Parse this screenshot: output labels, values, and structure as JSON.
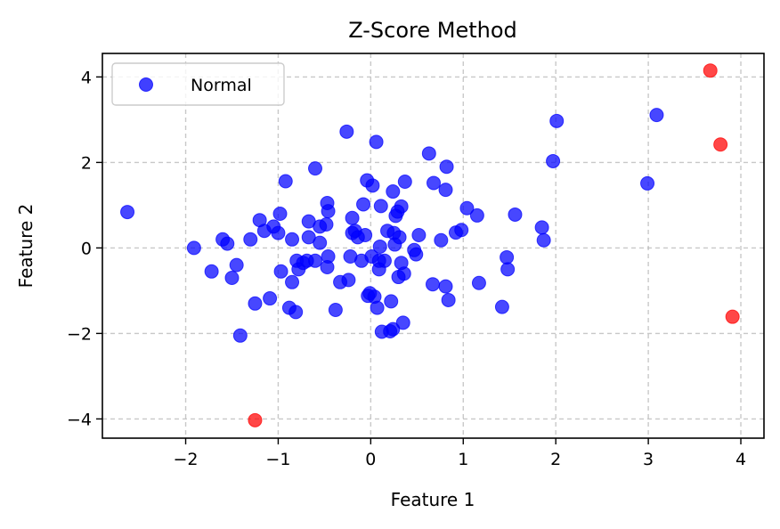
{
  "chart_data": {
    "type": "scatter",
    "title": "Z-Score Method",
    "xlabel": "Feature 1",
    "ylabel": "Feature 2",
    "xlim": [
      -2.9,
      4.25
    ],
    "ylim": [
      -4.45,
      4.55
    ],
    "xticks": [
      -2,
      -1,
      0,
      1,
      2,
      3,
      4
    ],
    "yticks": [
      -4,
      -2,
      0,
      2,
      4
    ],
    "xtick_labels": [
      "−2",
      "−1",
      "0",
      "1",
      "2",
      "3",
      "4"
    ],
    "ytick_labels": [
      "−4",
      "−2",
      "0",
      "2",
      "4"
    ],
    "grid": true,
    "legend_position": "top-left",
    "series": [
      {
        "name": "Normal",
        "color": "#0000ff",
        "points": [
          [
            -2.63,
            0.84
          ],
          [
            -1.91,
            0.0
          ],
          [
            -1.72,
            -0.55
          ],
          [
            -1.6,
            0.2
          ],
          [
            -1.55,
            0.1
          ],
          [
            -1.5,
            -0.7
          ],
          [
            -1.45,
            -0.4
          ],
          [
            -1.41,
            -2.05
          ],
          [
            -1.3,
            0.2
          ],
          [
            -1.25,
            -1.3
          ],
          [
            -1.2,
            0.65
          ],
          [
            -1.15,
            0.4
          ],
          [
            -1.09,
            -1.18
          ],
          [
            -1.05,
            0.5
          ],
          [
            -1.0,
            0.35
          ],
          [
            -0.98,
            0.8
          ],
          [
            -0.97,
            -0.55
          ],
          [
            -0.92,
            1.56
          ],
          [
            -0.88,
            -1.4
          ],
          [
            -0.85,
            -0.8
          ],
          [
            -0.85,
            0.2
          ],
          [
            -0.81,
            -1.5
          ],
          [
            -0.8,
            -0.3
          ],
          [
            -0.78,
            -0.5
          ],
          [
            -0.73,
            -0.35
          ],
          [
            -0.69,
            -0.3
          ],
          [
            -0.67,
            0.25
          ],
          [
            -0.67,
            0.62
          ],
          [
            -0.6,
            1.86
          ],
          [
            -0.6,
            -0.3
          ],
          [
            -0.55,
            0.5
          ],
          [
            -0.55,
            0.12
          ],
          [
            -0.48,
            0.55
          ],
          [
            -0.47,
            1.05
          ],
          [
            -0.46,
            0.86
          ],
          [
            -0.47,
            -0.45
          ],
          [
            -0.46,
            -0.2
          ],
          [
            -0.38,
            -1.45
          ],
          [
            -0.33,
            -0.8
          ],
          [
            -0.26,
            2.72
          ],
          [
            -0.24,
            -0.75
          ],
          [
            -0.22,
            -0.2
          ],
          [
            -0.2,
            0.7
          ],
          [
            -0.2,
            0.35
          ],
          [
            -0.17,
            0.4
          ],
          [
            -0.14,
            0.25
          ],
          [
            -0.1,
            -0.3
          ],
          [
            -0.08,
            1.02
          ],
          [
            -0.06,
            0.3
          ],
          [
            -0.04,
            1.58
          ],
          [
            -0.03,
            -1.12
          ],
          [
            -0.01,
            -1.06
          ],
          [
            0.01,
            -0.2
          ],
          [
            0.02,
            1.46
          ],
          [
            0.04,
            -1.14
          ],
          [
            0.06,
            2.48
          ],
          [
            0.07,
            -1.4
          ],
          [
            0.09,
            -0.3
          ],
          [
            0.09,
            -0.5
          ],
          [
            0.1,
            0.03
          ],
          [
            0.11,
            0.98
          ],
          [
            0.12,
            -1.96
          ],
          [
            0.15,
            -0.3
          ],
          [
            0.18,
            0.4
          ],
          [
            0.21,
            -1.95
          ],
          [
            0.22,
            -1.25
          ],
          [
            0.24,
            -1.9
          ],
          [
            0.24,
            1.32
          ],
          [
            0.25,
            0.35
          ],
          [
            0.26,
            0.08
          ],
          [
            0.27,
            0.75
          ],
          [
            0.29,
            0.85
          ],
          [
            0.3,
            -0.68
          ],
          [
            0.31,
            0.25
          ],
          [
            0.33,
            0.97
          ],
          [
            0.33,
            -0.35
          ],
          [
            0.35,
            -1.75
          ],
          [
            0.36,
            -0.6
          ],
          [
            0.37,
            1.55
          ],
          [
            0.47,
            -0.05
          ],
          [
            0.49,
            -0.15
          ],
          [
            0.52,
            0.3
          ],
          [
            0.63,
            2.21
          ],
          [
            0.67,
            -0.85
          ],
          [
            0.68,
            1.52
          ],
          [
            0.76,
            0.18
          ],
          [
            0.81,
            -0.9
          ],
          [
            0.81,
            1.36
          ],
          [
            0.82,
            1.9
          ],
          [
            0.84,
            -1.22
          ],
          [
            0.92,
            0.36
          ],
          [
            0.98,
            0.42
          ],
          [
            1.04,
            0.93
          ],
          [
            1.15,
            0.76
          ],
          [
            1.17,
            -0.82
          ],
          [
            1.42,
            -1.38
          ],
          [
            1.47,
            -0.22
          ],
          [
            1.48,
            -0.5
          ],
          [
            1.56,
            0.78
          ],
          [
            1.85,
            0.48
          ],
          [
            1.87,
            0.18
          ],
          [
            1.97,
            2.03
          ],
          [
            2.01,
            2.97
          ],
          [
            2.99,
            1.51
          ],
          [
            3.09,
            3.11
          ]
        ]
      },
      {
        "name": "",
        "color": "#ff0000",
        "points": [
          [
            3.67,
            4.15
          ],
          [
            3.78,
            2.42
          ],
          [
            3.91,
            -1.61
          ],
          [
            -1.25,
            -4.03
          ]
        ]
      }
    ]
  }
}
